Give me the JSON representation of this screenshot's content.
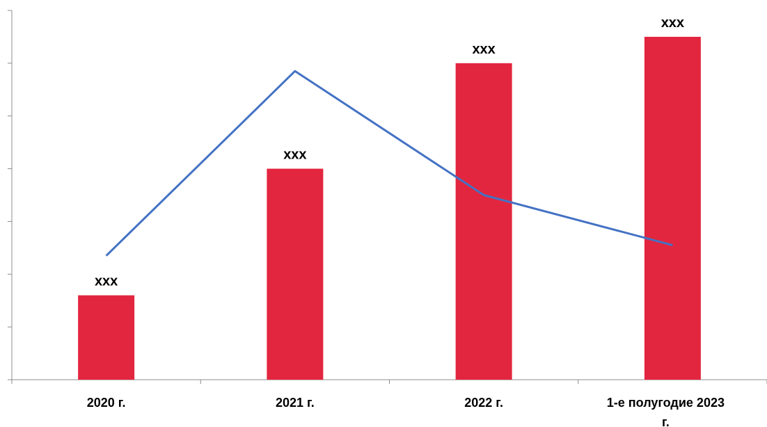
{
  "chart_data": {
    "type": "bar",
    "categories": [
      "2020 г.",
      "2021 г.",
      "2022 г.",
      "1-е полугодие 2023 г."
    ],
    "category_lines": [
      [
        "2020 г."
      ],
      [
        "2021 г."
      ],
      [
        "2022 г."
      ],
      [
        "1-е полугодие 2023",
        "г."
      ]
    ],
    "series": [
      {
        "type": "bar",
        "values": [
          16,
          40,
          60,
          65
        ],
        "data_labels": [
          "xxx",
          "xxx",
          "xxx",
          "xxx"
        ]
      },
      {
        "type": "line",
        "values": [
          23.5,
          58.5,
          35,
          25.5
        ]
      }
    ],
    "ylim": [
      0,
      70
    ],
    "y_tick_step": 10,
    "grid": false,
    "legend": "none",
    "colors": {
      "bar": "#e3263f",
      "line": "#4472c4",
      "axis": "#8c8c8c"
    }
  }
}
